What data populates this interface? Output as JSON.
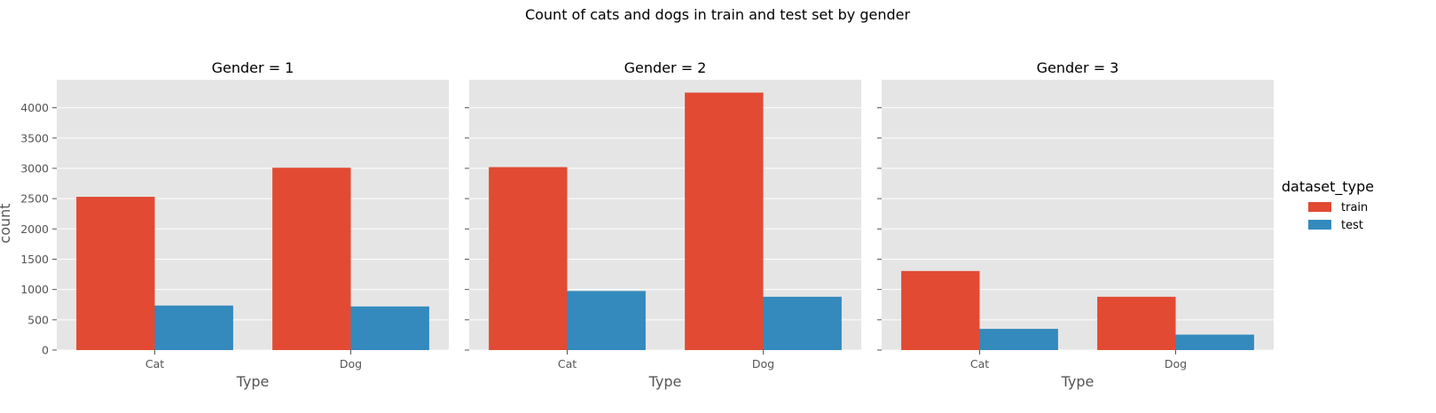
{
  "chart_data": {
    "type": "bar",
    "title": "Count of cats and dogs in train and test set by gender",
    "ylabel": "count",
    "ylim": [
      0,
      4462
    ],
    "yticks": [
      0,
      500,
      1000,
      1500,
      2000,
      2500,
      3000,
      3500,
      4000
    ],
    "grid": true,
    "legend": {
      "title": "dataset_type",
      "placement": "right",
      "entries": [
        "train",
        "test"
      ]
    },
    "colors": {
      "train": "#E24A33",
      "test": "#348ABD",
      "panel_bg": "#E5E5E5",
      "grid": "#FFFFFF"
    },
    "facets": [
      {
        "title": "Gender = 1",
        "xlabel": "Type",
        "categories": [
          "Cat",
          "Dog"
        ],
        "series": [
          {
            "name": "train",
            "values": [
              2530,
              3010
            ]
          },
          {
            "name": "test",
            "values": [
              735,
              720
            ]
          }
        ]
      },
      {
        "title": "Gender = 2",
        "xlabel": "Type",
        "categories": [
          "Cat",
          "Dog"
        ],
        "series": [
          {
            "name": "train",
            "values": [
              3020,
              4250
            ]
          },
          {
            "name": "test",
            "values": [
              975,
              880
            ]
          }
        ]
      },
      {
        "title": "Gender = 3",
        "xlabel": "Type",
        "categories": [
          "Cat",
          "Dog"
        ],
        "series": [
          {
            "name": "train",
            "values": [
              1305,
              880
            ]
          },
          {
            "name": "test",
            "values": [
              350,
              255
            ]
          }
        ]
      }
    ]
  }
}
